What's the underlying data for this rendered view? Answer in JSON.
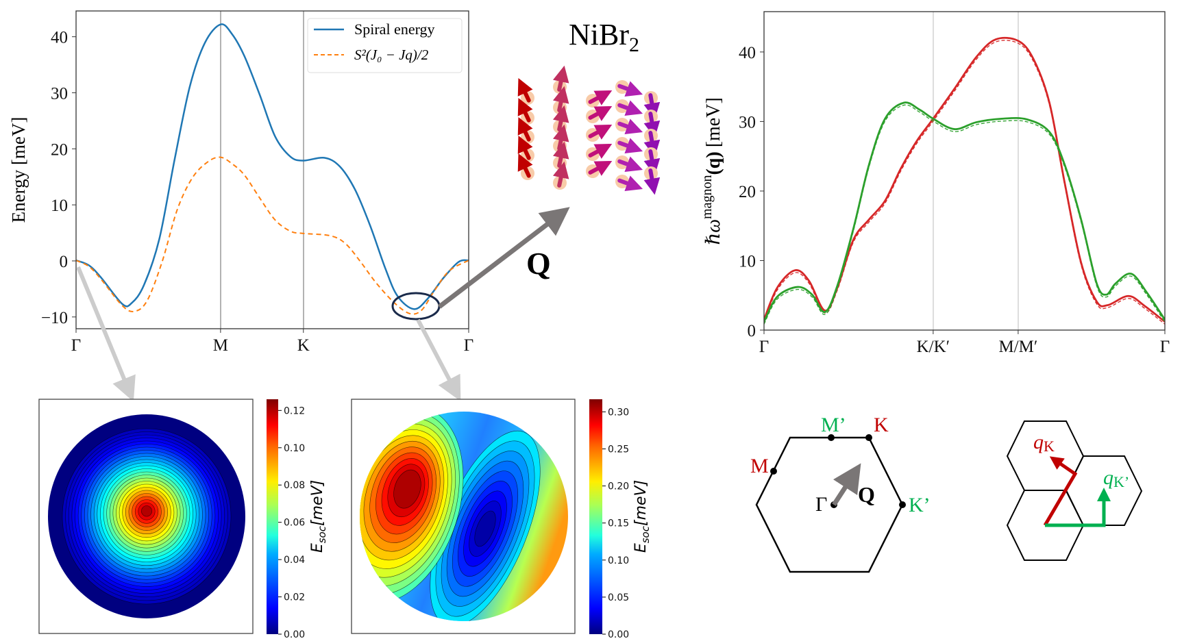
{
  "colors": {
    "spiral": "#1f77b4",
    "quadratic": "#ff7f0e",
    "mode1": "#d62728",
    "mode2": "#2ca02c",
    "red_label": "#c00000",
    "green_label": "#00b050",
    "q_arrow": "#7a7676"
  },
  "title_material": {
    "main": "NiBr",
    "sub": "2"
  },
  "q_label": "Q",
  "chart_data": [
    {
      "type": "line",
      "ylabel": "Energy [meV]",
      "ylim": [
        -12.1,
        44.6
      ],
      "yticks": [
        -10,
        0,
        10,
        20,
        30,
        40
      ],
      "xticks": [
        {
          "label": "Γ",
          "x": 0
        },
        {
          "label": "M",
          "x": 0.368
        },
        {
          "label": "K",
          "x": 0.579
        },
        {
          "label": "Γ",
          "x": 1
        }
      ],
      "grid": "vertical lines at M and K",
      "legend": "top-right",
      "series": [
        {
          "name": "Spiral energy",
          "style": "solid",
          "points": [
            [
              0,
              0.1
            ],
            [
              0.033,
              -0.8
            ],
            [
              0.064,
              -3
            ],
            [
              0.118,
              -7.7
            ],
            [
              0.142,
              -7.5
            ],
            [
              0.173,
              -4.3
            ],
            [
              0.212,
              3.9
            ],
            [
              0.251,
              18.1
            ],
            [
              0.29,
              31.2
            ],
            [
              0.328,
              38.9
            ],
            [
              0.368,
              42.2
            ],
            [
              0.398,
              40.4
            ],
            [
              0.429,
              36.5
            ],
            [
              0.468,
              29.6
            ],
            [
              0.507,
              22.2
            ],
            [
              0.546,
              18.6
            ],
            [
              0.579,
              17.9
            ],
            [
              0.632,
              18.4
            ],
            [
              0.671,
              16.9
            ],
            [
              0.71,
              12.8
            ],
            [
              0.749,
              6.3
            ],
            [
              0.788,
              -1.4
            ],
            [
              0.819,
              -6.3
            ],
            [
              0.861,
              -8.6
            ],
            [
              0.896,
              -6.7
            ],
            [
              0.935,
              -3.1
            ],
            [
              0.974,
              -0.2
            ],
            [
              1,
              0.1
            ]
          ]
        },
        {
          "name": "S²(J₀ − Jq)/2",
          "style": "dashed",
          "points": [
            [
              0,
              0.1
            ],
            [
              0.033,
              -1
            ],
            [
              0.064,
              -3.3
            ],
            [
              0.118,
              -8
            ],
            [
              0.149,
              -9
            ],
            [
              0.181,
              -7.1
            ],
            [
              0.219,
              -0.2
            ],
            [
              0.258,
              9.2
            ],
            [
              0.297,
              14.9
            ],
            [
              0.336,
              17.7
            ],
            [
              0.368,
              18.5
            ],
            [
              0.398,
              17.3
            ],
            [
              0.429,
              15.3
            ],
            [
              0.468,
              11.2
            ],
            [
              0.507,
              7.3
            ],
            [
              0.546,
              5.3
            ],
            [
              0.579,
              4.9
            ],
            [
              0.647,
              4.5
            ],
            [
              0.686,
              3.1
            ],
            [
              0.725,
              -0.2
            ],
            [
              0.764,
              -3.9
            ],
            [
              0.811,
              -7.5
            ],
            [
              0.85,
              -9.4
            ],
            [
              0.88,
              -8.8
            ],
            [
              0.911,
              -5.5
            ],
            [
              0.95,
              -1.8
            ],
            [
              1,
              0.1
            ]
          ]
        }
      ]
    },
    {
      "type": "line",
      "ylabel": {
        "hbar_omega": "ℏω",
        "sup": "magnon",
        "q": "(q)",
        "unit": "[meV]"
      },
      "ylim": [
        0,
        45.8
      ],
      "yticks": [
        0,
        10,
        20,
        30,
        40
      ],
      "xticks": [
        {
          "label": "Γ",
          "x": 0
        },
        {
          "label": "K/K′",
          "x": 0.422
        },
        {
          "label": "M/M′",
          "x": 0.634
        },
        {
          "label": "Γ",
          "x": 1
        }
      ],
      "grid": "vertical lines at K/K′ and M/M′",
      "series": [
        {
          "color": "red",
          "style": "solid + dashed",
          "points": [
            [
              0,
              1.5
            ],
            [
              0.033,
              6.1
            ],
            [
              0.077,
              8.6
            ],
            [
              0.112,
              7.1
            ],
            [
              0.152,
              2.8
            ],
            [
              0.183,
              6.1
            ],
            [
              0.223,
              13
            ],
            [
              0.262,
              15.9
            ],
            [
              0.302,
              18.6
            ],
            [
              0.341,
              23.2
            ],
            [
              0.38,
              27.1
            ],
            [
              0.422,
              30.4
            ],
            [
              0.475,
              34.7
            ],
            [
              0.53,
              39.3
            ],
            [
              0.578,
              41.8
            ],
            [
              0.634,
              41.6
            ],
            [
              0.672,
              39
            ],
            [
              0.712,
              32.7
            ],
            [
              0.75,
              21.2
            ],
            [
              0.791,
              9.7
            ],
            [
              0.83,
              4.1
            ],
            [
              0.858,
              3.6
            ],
            [
              0.909,
              4.9
            ],
            [
              0.949,
              3.5
            ],
            [
              1,
              1.2
            ]
          ]
        },
        {
          "color": "green",
          "style": "solid + dashed",
          "points": [
            [
              0,
              1.2
            ],
            [
              0.033,
              4.8
            ],
            [
              0.084,
              6.2
            ],
            [
              0.12,
              5.1
            ],
            [
              0.152,
              2.6
            ],
            [
              0.183,
              6.4
            ],
            [
              0.223,
              14.6
            ],
            [
              0.262,
              23.8
            ],
            [
              0.302,
              30.4
            ],
            [
              0.349,
              32.7
            ],
            [
              0.388,
              31.7
            ],
            [
              0.422,
              30.4
            ],
            [
              0.475,
              28.9
            ],
            [
              0.53,
              29.9
            ],
            [
              0.593,
              30.4
            ],
            [
              0.656,
              30.3
            ],
            [
              0.712,
              28.5
            ],
            [
              0.75,
              23.8
            ],
            [
              0.791,
              15.9
            ],
            [
              0.83,
              6.7
            ],
            [
              0.854,
              5.1
            ],
            [
              0.877,
              6.7
            ],
            [
              0.916,
              8.1
            ],
            [
              0.955,
              5.4
            ],
            [
              1,
              1.5
            ]
          ]
        }
      ]
    },
    {
      "type": "heatmap",
      "colormap": "jet",
      "colorbar": {
        "label_main": "E",
        "label_sub": "soc",
        "label_unit": "[meV]",
        "range": [
          0,
          0.126
        ],
        "ticks": [
          "0.00",
          "0.02",
          "0.04",
          "0.06",
          "0.08",
          "0.10",
          "0.12"
        ]
      },
      "pattern": "single maximum at center, concentric contours"
    },
    {
      "type": "heatmap",
      "colormap": "jet",
      "colorbar": {
        "label_main": "E",
        "label_sub": "soc",
        "label_unit": "[meV]",
        "range": [
          0,
          0.317
        ],
        "ticks": [
          "0.00",
          "0.05",
          "0.10",
          "0.15",
          "0.20",
          "0.25",
          "0.30"
        ]
      },
      "pattern": "maximum upper-left, minimum lower-center-right"
    }
  ],
  "bz": {
    "points": {
      "M": "M",
      "Mp": "M’",
      "K": "K",
      "Kp": "K’",
      "G": "Γ"
    },
    "q": "Q"
  },
  "qvec": {
    "qK": {
      "q": "q",
      "sub": "K"
    },
    "qKp": {
      "q": "q",
      "sub": "K’"
    }
  }
}
